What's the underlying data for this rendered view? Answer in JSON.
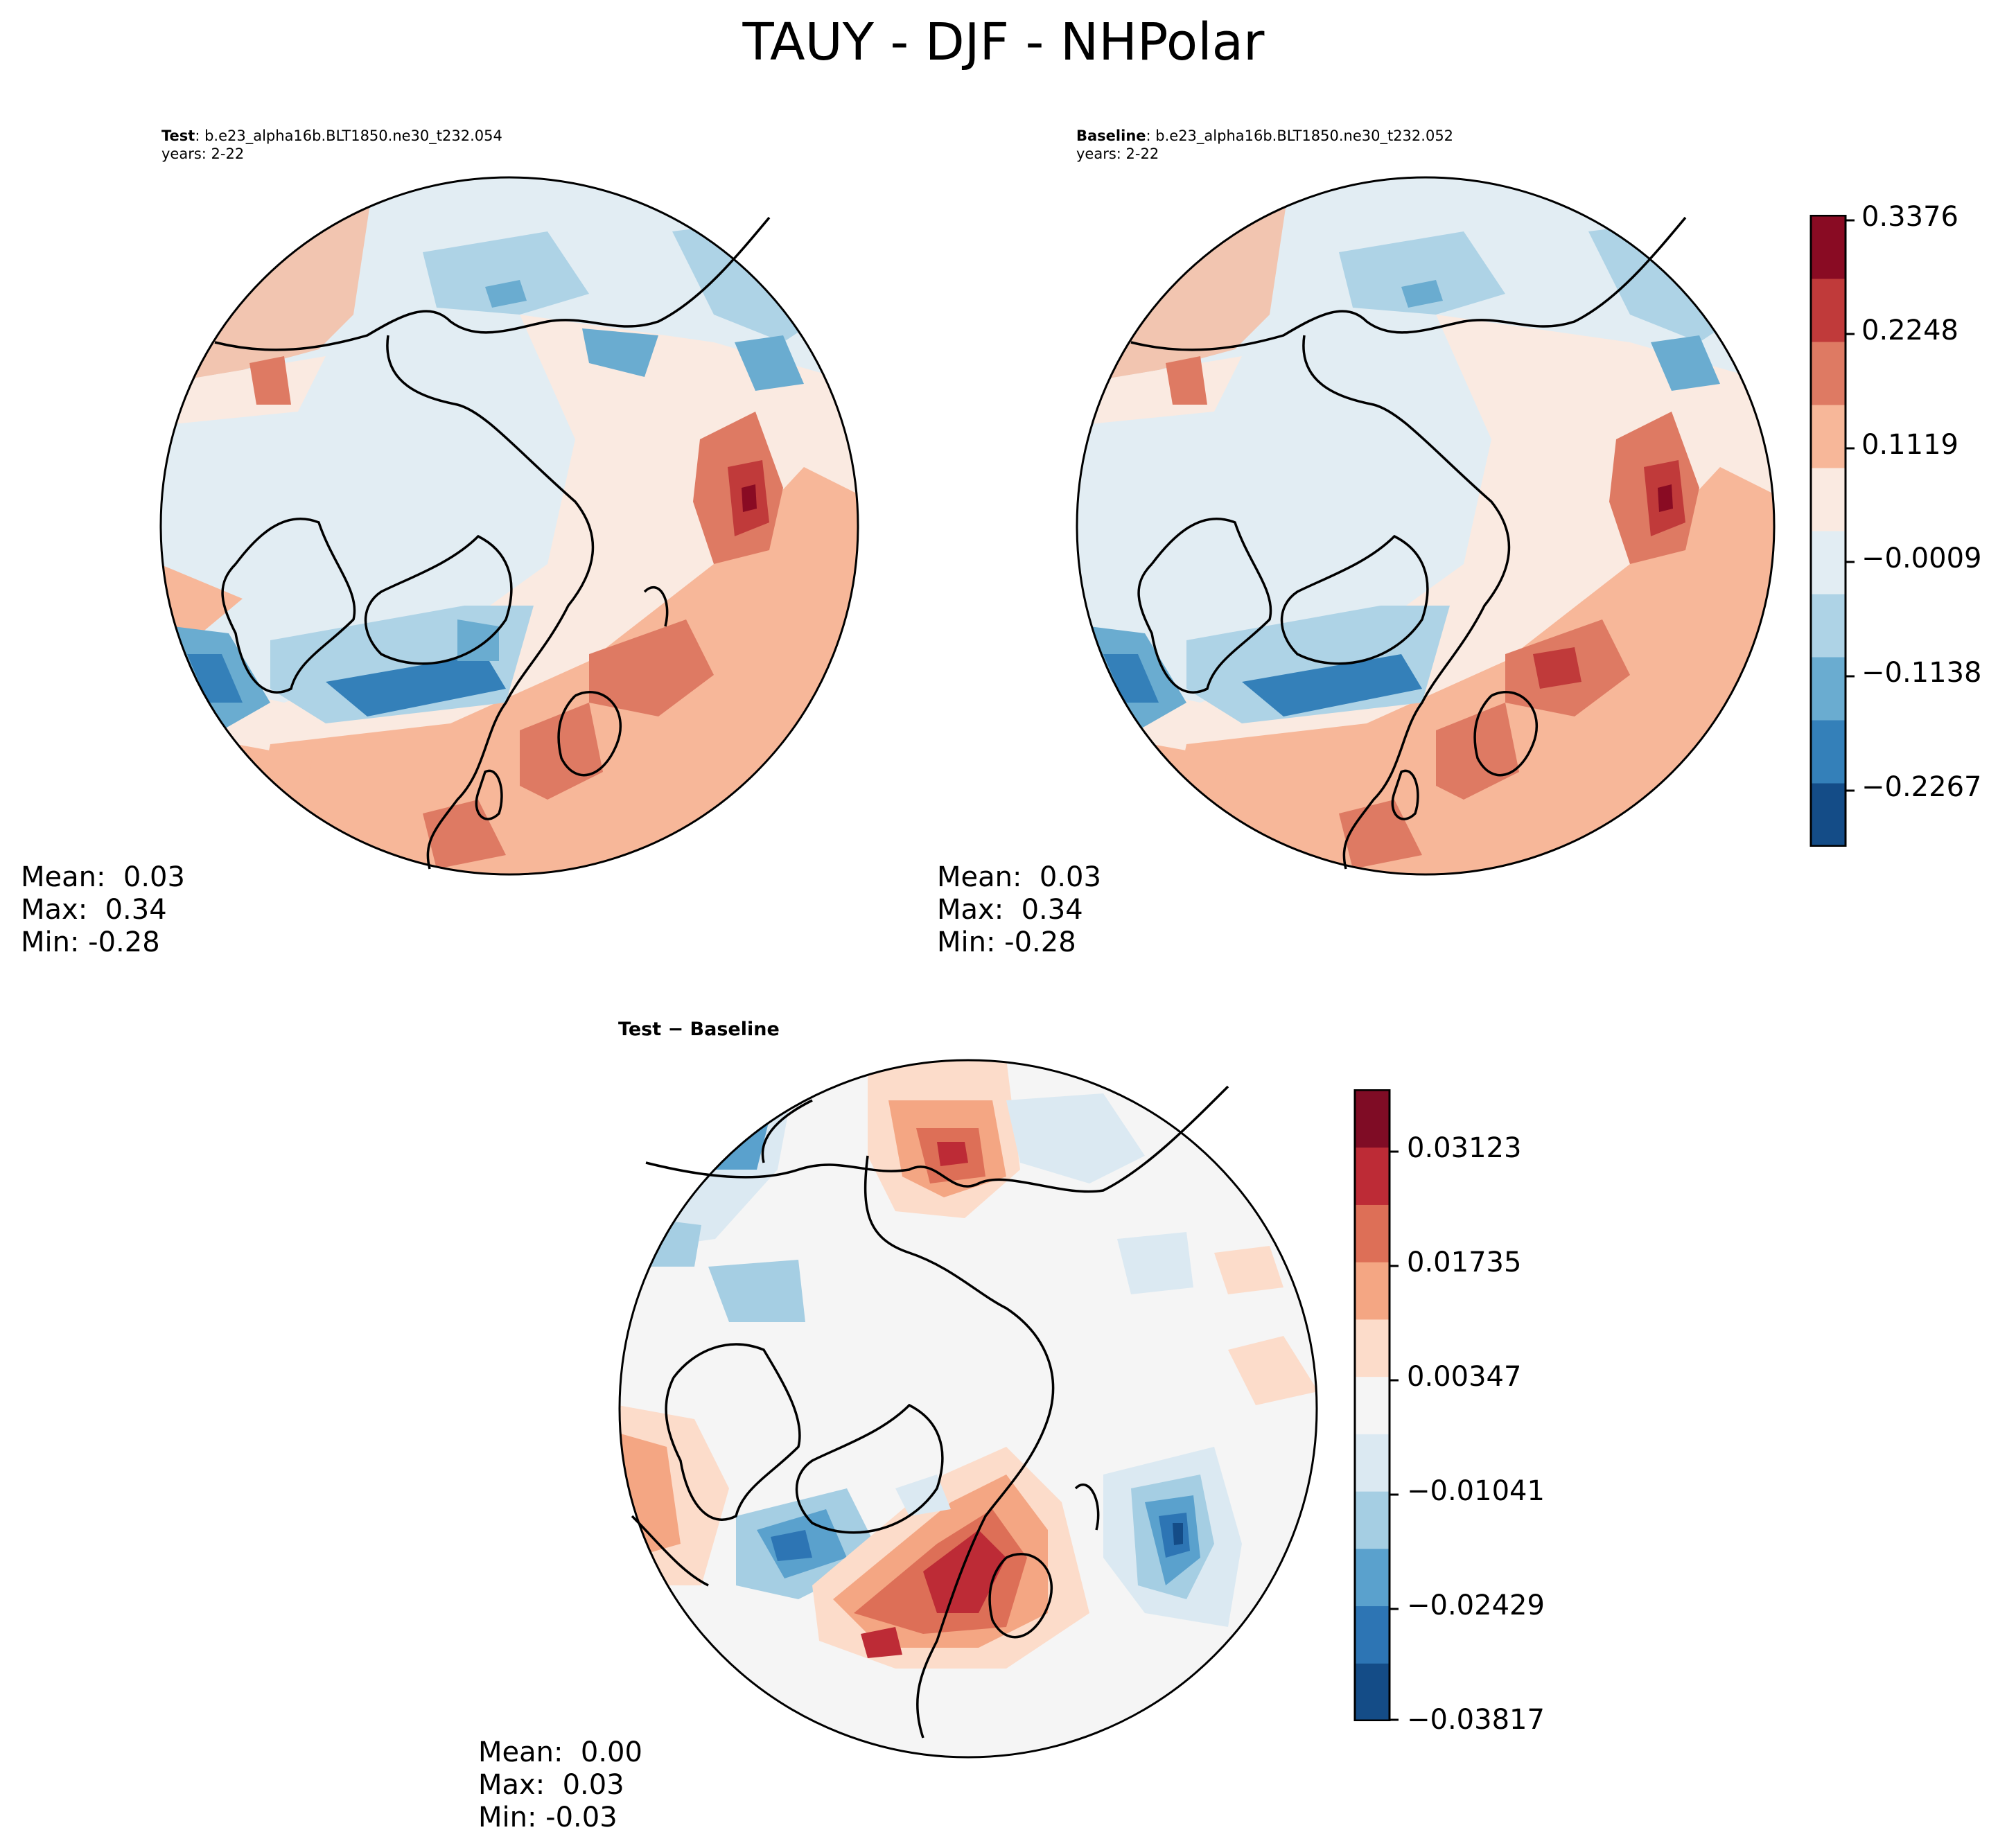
{
  "figure": {
    "title": "TAUY - DJF - NHPolar"
  },
  "panels": {
    "test": {
      "label_bold": "Test",
      "label_rest": ": b.e23_alpha16b.BLT1850.ne30_t232.054",
      "years": "years: 2-22",
      "stats": {
        "mean": "Mean:  0.03",
        "max": "Max:  0.34",
        "min": "Min: -0.28"
      }
    },
    "baseline": {
      "label_bold": "Baseline",
      "label_rest": ": b.e23_alpha16b.BLT1850.ne30_t232.052",
      "years": "years: 2-22",
      "stats": {
        "mean": "Mean:  0.03",
        "max": "Max:  0.34",
        "min": "Min: -0.28"
      }
    },
    "diff": {
      "label": "Test − Baseline",
      "stats": {
        "mean": "Mean:  0.00",
        "max": "Max:  0.03",
        "min": "Min: -0.03"
      }
    }
  },
  "colorbars": {
    "main": {
      "ticks": [
        "0.3376",
        "0.2248",
        "0.1119",
        "−0.0009",
        "−0.1138",
        "−0.2267"
      ],
      "range": [
        -0.2831,
        0.3376
      ],
      "colors": [
        "#144c87",
        "#3480b9",
        "#6aacd0",
        "#aed3e6",
        "#e2edf3",
        "#faeae1",
        "#f7b799",
        "#de7a63",
        "#c03a3a",
        "#890b23"
      ]
    },
    "diff": {
      "ticks": [
        "0.03123",
        "0.01735",
        "0.00347",
        "−0.01041",
        "−0.02429",
        "−0.03817"
      ],
      "range": [
        -0.03817,
        0.03817
      ],
      "colors": [
        "#144c87",
        "#2d75b4",
        "#5aa1cd",
        "#a5cee3",
        "#dbe9f2",
        "#f5f5f5",
        "#fcdcca",
        "#f4a683",
        "#dd6f57",
        "#bd2b36",
        "#7f0c25"
      ]
    }
  },
  "chart_data": {
    "type": "heatmap",
    "title": "TAUY - DJF - NHPolar",
    "projection": "North polar stereographic",
    "fields": [
      {
        "name": "Test",
        "mean": 0.03,
        "max": 0.34,
        "min": -0.28
      },
      {
        "name": "Baseline",
        "mean": 0.03,
        "max": 0.34,
        "min": -0.28
      },
      {
        "name": "Test - Baseline",
        "mean": 0.0,
        "max": 0.03,
        "min": -0.03
      }
    ],
    "colorbar_main_ticks": [
      0.3376,
      0.2248,
      0.1119,
      -0.0009,
      -0.1138,
      -0.2267
    ],
    "colorbar_diff_ticks": [
      0.03123,
      0.01735,
      0.00347,
      -0.01041,
      -0.02429,
      -0.03817
    ]
  }
}
